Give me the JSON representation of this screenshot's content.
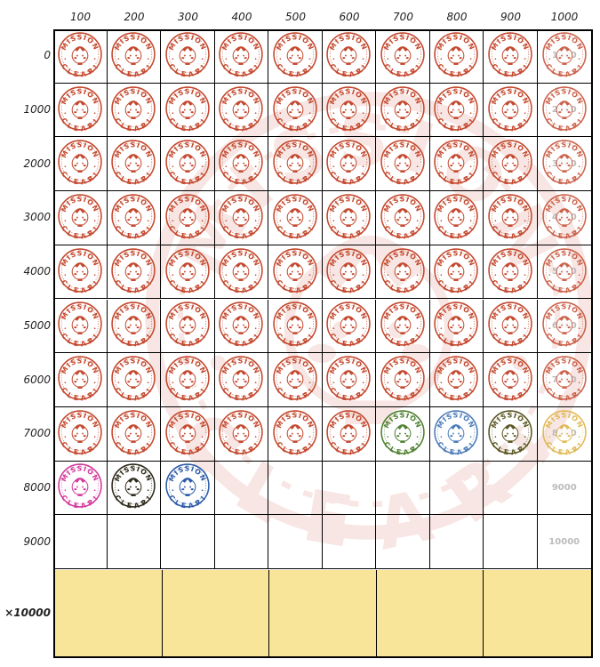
{
  "column_headers": [
    "100",
    "200",
    "300",
    "400",
    "500",
    "600",
    "700",
    "800",
    "900",
    "1000"
  ],
  "row_headers": [
    "0",
    "1000",
    "2000",
    "3000",
    "4000",
    "5000",
    "6000",
    "7000",
    "8000",
    "9000"
  ],
  "bonus_row_label": "×10000",
  "bonus_cells": 5,
  "last_column_values": [
    "1000",
    "2000",
    "3000",
    "4000",
    "5000",
    "6000",
    "7000",
    "8000",
    "9000",
    "10000"
  ],
  "stamp_text_top": "MISSION",
  "stamp_text_bottom": "CLEAR!",
  "stamp_colors": {
    "red": "#c4492f",
    "green": "#4f8030",
    "lightblue": "#4d7cb8",
    "olive": "#5b5622",
    "gold": "#dcae3a",
    "magenta": "#d3399c",
    "black": "#2e2a1c",
    "blue": "#2d5aa8"
  },
  "stamps": [
    [
      "red",
      "red",
      "red",
      "red",
      "red",
      "red",
      "red",
      "red",
      "red",
      "red"
    ],
    [
      "red",
      "red",
      "red",
      "red",
      "red",
      "red",
      "red",
      "red",
      "red",
      "red"
    ],
    [
      "red",
      "red",
      "red",
      "red",
      "red",
      "red",
      "red",
      "red",
      "red",
      "red"
    ],
    [
      "red",
      "red",
      "red",
      "red",
      "red",
      "red",
      "red",
      "red",
      "red",
      "red"
    ],
    [
      "red",
      "red",
      "red",
      "red",
      "red",
      "red",
      "red",
      "red",
      "red",
      "red"
    ],
    [
      "red",
      "red",
      "red",
      "red",
      "red",
      "red",
      "red",
      "red",
      "red",
      "red"
    ],
    [
      "red",
      "red",
      "red",
      "red",
      "red",
      "red",
      "red",
      "red",
      "red",
      "red"
    ],
    [
      "red",
      "red",
      "red",
      "red",
      "red",
      "red",
      "green",
      "lightblue",
      "olive",
      "gold"
    ],
    [
      "magenta",
      "black",
      "blue"
    ],
    []
  ],
  "bonus_color": "#f9e59a"
}
